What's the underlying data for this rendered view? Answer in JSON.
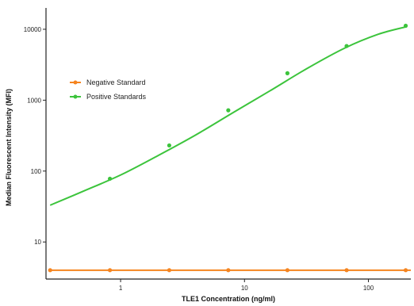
{
  "chart_data": {
    "type": "scatter",
    "title": "",
    "xlabel": "TLE1 Concentration (ng/ml)",
    "ylabel": "Median Fluorescent Intensity (MFI)",
    "xscale": "log",
    "yscale": "log",
    "xlim": [
      0.25,
      220
    ],
    "ylim": [
      3,
      20000
    ],
    "x_ticks": [
      {
        "value": 1,
        "label": "1"
      },
      {
        "value": 10,
        "label": "10"
      },
      {
        "value": 100,
        "label": "100"
      }
    ],
    "y_ticks": [
      {
        "value": 10,
        "label": "10"
      },
      {
        "value": 100,
        "label": "100"
      },
      {
        "value": 1000,
        "label": "1000"
      },
      {
        "value": 10000,
        "label": "10000"
      }
    ],
    "grid": false,
    "legend_position": "upper-left",
    "series": [
      {
        "name": "Negative Standard",
        "color": "#f5841f",
        "marker": "circle",
        "x": [
          0.27,
          0.82,
          2.47,
          7.4,
          22.2,
          66.7,
          200
        ],
        "y": [
          4,
          4,
          4,
          4,
          4,
          4,
          4
        ]
      },
      {
        "name": "Positive Standards",
        "color": "#3cc43c",
        "marker": "circle",
        "x": [
          0.82,
          2.47,
          7.4,
          22.2,
          66.7,
          200
        ],
        "y": [
          78,
          230,
          720,
          2400,
          5800,
          11200
        ],
        "curve_x": [
          0.27,
          0.5,
          1,
          2,
          4,
          8,
          16,
          32,
          64,
          120,
          200
        ],
        "curve_y": [
          33,
          52,
          88,
          165,
          320,
          660,
          1350,
          2800,
          5400,
          8500,
          10800
        ]
      }
    ]
  }
}
